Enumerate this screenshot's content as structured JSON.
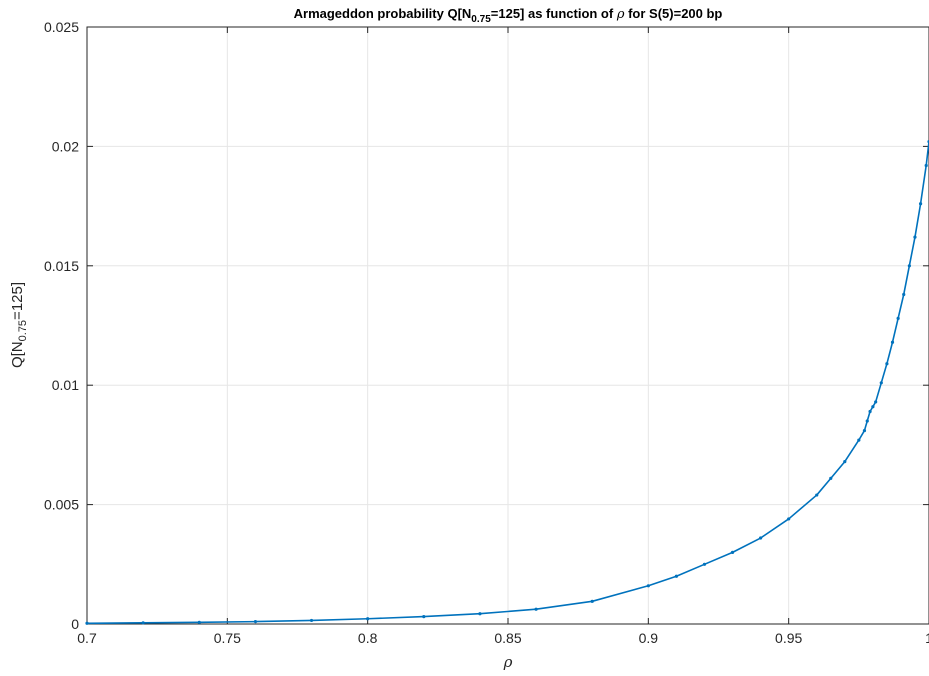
{
  "chart_data": {
    "type": "line",
    "title": {
      "prefix": "Armageddon probability Q[N",
      "sub": "0.75",
      "middle": "=125] as function of ",
      "symbol": "ρ",
      "suffix": " for S(5)=200 bp"
    },
    "xlabel": "ρ",
    "ylabel": {
      "prefix": "Q[N",
      "sub": "0.75",
      "suffix": "=125]"
    },
    "xlim": [
      0.7,
      1
    ],
    "ylim": [
      0,
      0.025
    ],
    "xticks": [
      "0.7",
      "0.75",
      "0.8",
      "0.85",
      "0.9",
      "0.95",
      "1"
    ],
    "yticks": [
      "0",
      "0.005",
      "0.01",
      "0.015",
      "0.02",
      "0.025"
    ],
    "grid": true,
    "marker": "dot",
    "series": [
      {
        "color": "#0072BD",
        "x": [
          0.7,
          0.72,
          0.74,
          0.76,
          0.78,
          0.8,
          0.82,
          0.84,
          0.86,
          0.88,
          0.9,
          0.91,
          0.92,
          0.93,
          0.94,
          0.95,
          0.96,
          0.965,
          0.97,
          0.975,
          0.977,
          0.978,
          0.979,
          0.98,
          0.981,
          0.983,
          0.985,
          0.987,
          0.989,
          0.991,
          0.993,
          0.995,
          0.997,
          0.999,
          1.0
        ],
        "y": [
          3e-05,
          5e-05,
          7e-05,
          0.0001,
          0.00015,
          0.00022,
          0.00031,
          0.00043,
          0.00062,
          0.00095,
          0.0016,
          0.002,
          0.0025,
          0.003,
          0.0036,
          0.0044,
          0.0054,
          0.0061,
          0.0068,
          0.0077,
          0.0081,
          0.0085,
          0.0089,
          0.0091,
          0.0093,
          0.0101,
          0.0109,
          0.0118,
          0.0128,
          0.0138,
          0.015,
          0.0162,
          0.0176,
          0.0192,
          0.0202
        ]
      }
    ]
  }
}
